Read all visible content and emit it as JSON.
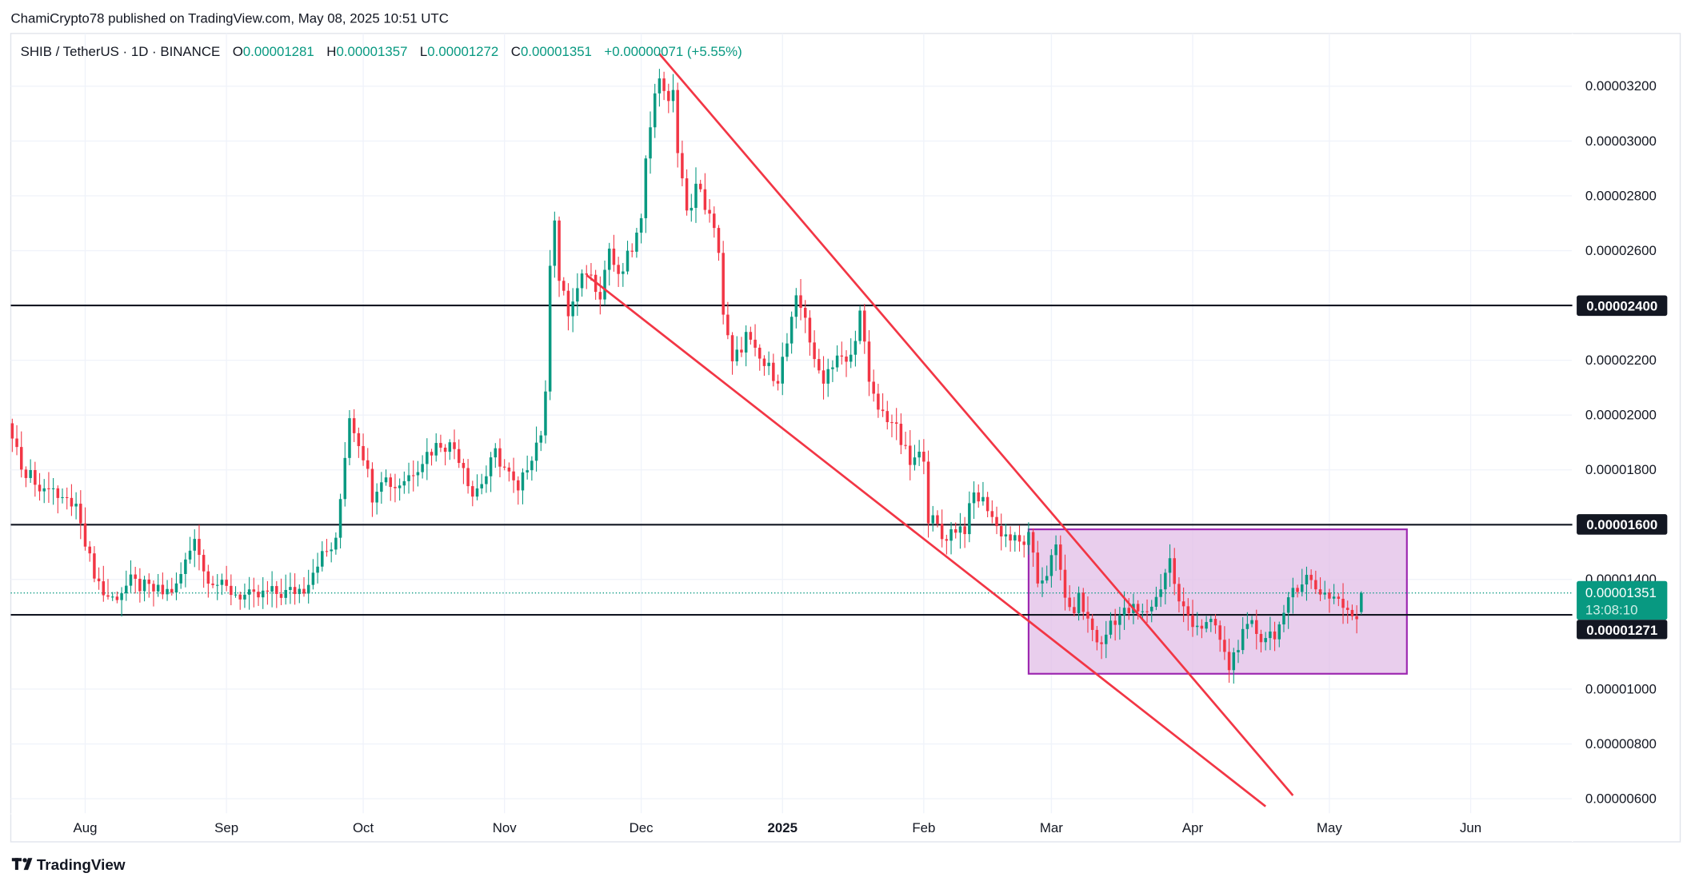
{
  "header": {
    "published": "ChamiCrypto78 published on TradingView.com, May 08, 2025 10:51 UTC"
  },
  "legend": {
    "symbol": "SHIB / TetherUS · 1D · BINANCE",
    "o_label": "O",
    "o_value": "0.00001281",
    "h_label": "H",
    "h_value": "0.00001357",
    "l_label": "L",
    "l_value": "0.00001272",
    "c_label": "C",
    "c_value": "0.00001351",
    "change": "+0.00000071 (+5.55%)"
  },
  "price_labels": {
    "current": "0.00001351",
    "countdown": "13:08:10",
    "level_2400": "0.00002400",
    "level_1600": "0.00001600",
    "level_1271": "0.00001271"
  },
  "footer": {
    "brand": "TradingView"
  },
  "colors": {
    "up": "#089981",
    "down": "#f23645",
    "box": "#9c27b0",
    "box_fill": "#e1bee7",
    "trend": "#f23645"
  },
  "chart_data": {
    "type": "candlestick",
    "title": "SHIB / TetherUS · 1D · BINANCE",
    "price_unit": "1e-5 USDT",
    "ylim": [
      0.55,
      3.35
    ],
    "xlim_days_from_2024_08_01": [
      -16,
      335
    ],
    "y_ticks": [
      {
        "v": 3.2,
        "label": "0.00003200"
      },
      {
        "v": 3.0,
        "label": "0.00003000"
      },
      {
        "v": 2.8,
        "label": "0.00002800"
      },
      {
        "v": 2.6,
        "label": "0.00002600"
      },
      {
        "v": 2.2,
        "label": "0.00002200"
      },
      {
        "v": 2.0,
        "label": "0.00002000"
      },
      {
        "v": 1.8,
        "label": "0.00001800"
      },
      {
        "v": 1.4,
        "label": "0.00001400"
      },
      {
        "v": 1.0,
        "label": "0.00001000"
      },
      {
        "v": 0.8,
        "label": "0.00000800"
      },
      {
        "v": 0.6,
        "label": "0.00000600"
      }
    ],
    "x_ticks": [
      {
        "day": 0,
        "label": "Aug"
      },
      {
        "day": 31,
        "label": "Sep"
      },
      {
        "day": 61,
        "label": "Oct"
      },
      {
        "day": 92,
        "label": "Nov"
      },
      {
        "day": 122,
        "label": "Dec"
      },
      {
        "day": 153,
        "label": "2025",
        "bold": true
      },
      {
        "day": 184,
        "label": "Feb"
      },
      {
        "day": 212,
        "label": "Mar"
      },
      {
        "day": 243,
        "label": "Apr"
      },
      {
        "day": 273,
        "label": "May"
      },
      {
        "day": 304,
        "label": "Jun"
      }
    ],
    "close_path_days_price": [
      [
        -16,
        1.94
      ],
      [
        -14,
        1.82
      ],
      [
        -12,
        1.78
      ],
      [
        -8,
        1.72
      ],
      [
        -4,
        1.69
      ],
      [
        -1,
        1.63
      ],
      [
        1,
        1.47
      ],
      [
        4,
        1.35
      ],
      [
        6,
        1.33
      ],
      [
        10,
        1.39
      ],
      [
        13,
        1.37
      ],
      [
        17,
        1.35
      ],
      [
        20,
        1.37
      ],
      [
        23,
        1.51
      ],
      [
        24,
        1.57
      ],
      [
        26,
        1.43
      ],
      [
        30,
        1.37
      ],
      [
        33,
        1.35
      ],
      [
        37,
        1.33
      ],
      [
        40,
        1.35
      ],
      [
        44,
        1.35
      ],
      [
        48,
        1.37
      ],
      [
        51,
        1.47
      ],
      [
        55,
        1.53
      ],
      [
        57,
        1.86
      ],
      [
        58,
        2.0
      ],
      [
        61,
        1.86
      ],
      [
        63,
        1.71
      ],
      [
        65,
        1.78
      ],
      [
        68,
        1.74
      ],
      [
        71,
        1.78
      ],
      [
        75,
        1.86
      ],
      [
        78,
        1.9
      ],
      [
        81,
        1.88
      ],
      [
        83,
        1.82
      ],
      [
        85,
        1.71
      ],
      [
        88,
        1.78
      ],
      [
        90,
        1.86
      ],
      [
        93,
        1.78
      ],
      [
        95,
        1.71
      ],
      [
        97,
        1.82
      ],
      [
        100,
        1.94
      ],
      [
        101,
        2.06
      ],
      [
        102,
        2.57
      ],
      [
        103,
        2.73
      ],
      [
        104,
        2.49
      ],
      [
        106,
        2.37
      ],
      [
        108,
        2.45
      ],
      [
        110,
        2.53
      ],
      [
        113,
        2.45
      ],
      [
        115,
        2.61
      ],
      [
        117,
        2.49
      ],
      [
        120,
        2.61
      ],
      [
        122,
        2.69
      ],
      [
        123,
        2.96
      ],
      [
        124,
        3.08
      ],
      [
        126,
        3.24
      ],
      [
        127,
        3.2
      ],
      [
        128,
        3.12
      ],
      [
        129,
        3.2
      ],
      [
        130,
        2.96
      ],
      [
        132,
        2.73
      ],
      [
        134,
        2.84
      ],
      [
        136,
        2.77
      ],
      [
        139,
        2.61
      ],
      [
        140,
        2.37
      ],
      [
        142,
        2.18
      ],
      [
        145,
        2.29
      ],
      [
        147,
        2.22
      ],
      [
        149,
        2.18
      ],
      [
        152,
        2.14
      ],
      [
        154,
        2.26
      ],
      [
        156,
        2.41
      ],
      [
        158,
        2.37
      ],
      [
        160,
        2.18
      ],
      [
        162,
        2.14
      ],
      [
        165,
        2.22
      ],
      [
        167,
        2.18
      ],
      [
        169,
        2.26
      ],
      [
        170,
        2.41
      ],
      [
        172,
        2.1
      ],
      [
        174,
        2.02
      ],
      [
        177,
        1.98
      ],
      [
        179,
        1.9
      ],
      [
        181,
        1.82
      ],
      [
        184,
        1.86
      ],
      [
        185,
        1.63
      ],
      [
        187,
        1.59
      ],
      [
        188,
        1.55
      ],
      [
        191,
        1.59
      ],
      [
        193,
        1.59
      ],
      [
        195,
        1.71
      ],
      [
        198,
        1.67
      ],
      [
        200,
        1.59
      ],
      [
        203,
        1.55
      ],
      [
        205,
        1.53
      ],
      [
        207,
        1.55
      ],
      [
        209,
        1.39
      ],
      [
        211,
        1.43
      ],
      [
        213,
        1.51
      ],
      [
        216,
        1.27
      ],
      [
        218,
        1.33
      ],
      [
        220,
        1.25
      ],
      [
        223,
        1.15
      ],
      [
        225,
        1.25
      ],
      [
        227,
        1.27
      ],
      [
        230,
        1.29
      ],
      [
        232,
        1.27
      ],
      [
        235,
        1.33
      ],
      [
        237,
        1.43
      ],
      [
        238,
        1.47
      ],
      [
        240,
        1.31
      ],
      [
        243,
        1.25
      ],
      [
        245,
        1.23
      ],
      [
        248,
        1.23
      ],
      [
        250,
        1.12
      ],
      [
        251,
        1.08
      ],
      [
        253,
        1.17
      ],
      [
        256,
        1.23
      ],
      [
        258,
        1.19
      ],
      [
        261,
        1.21
      ],
      [
        263,
        1.25
      ],
      [
        265,
        1.37
      ],
      [
        268,
        1.41
      ],
      [
        270,
        1.37
      ],
      [
        272,
        1.35
      ],
      [
        275,
        1.33
      ],
      [
        277,
        1.27
      ],
      [
        279,
        1.27
      ]
    ],
    "last_candle": {
      "day": 280,
      "open": 1.281,
      "high": 1.357,
      "low": 1.272,
      "close": 1.351
    },
    "horizontal_levels": [
      2.4,
      1.6,
      1.271
    ],
    "current_price": 1.351,
    "range_box": {
      "day_start": 207,
      "day_end": 290,
      "top": 1.583,
      "bottom": 1.056
    },
    "trendlines": [
      {
        "name": "upper",
        "p1": [
          126,
          3.318
        ],
        "p2": [
          265,
          0.612
        ]
      },
      {
        "name": "lower",
        "p1": [
          110,
          2.511
        ],
        "p2": [
          259,
          0.572
        ]
      }
    ]
  }
}
